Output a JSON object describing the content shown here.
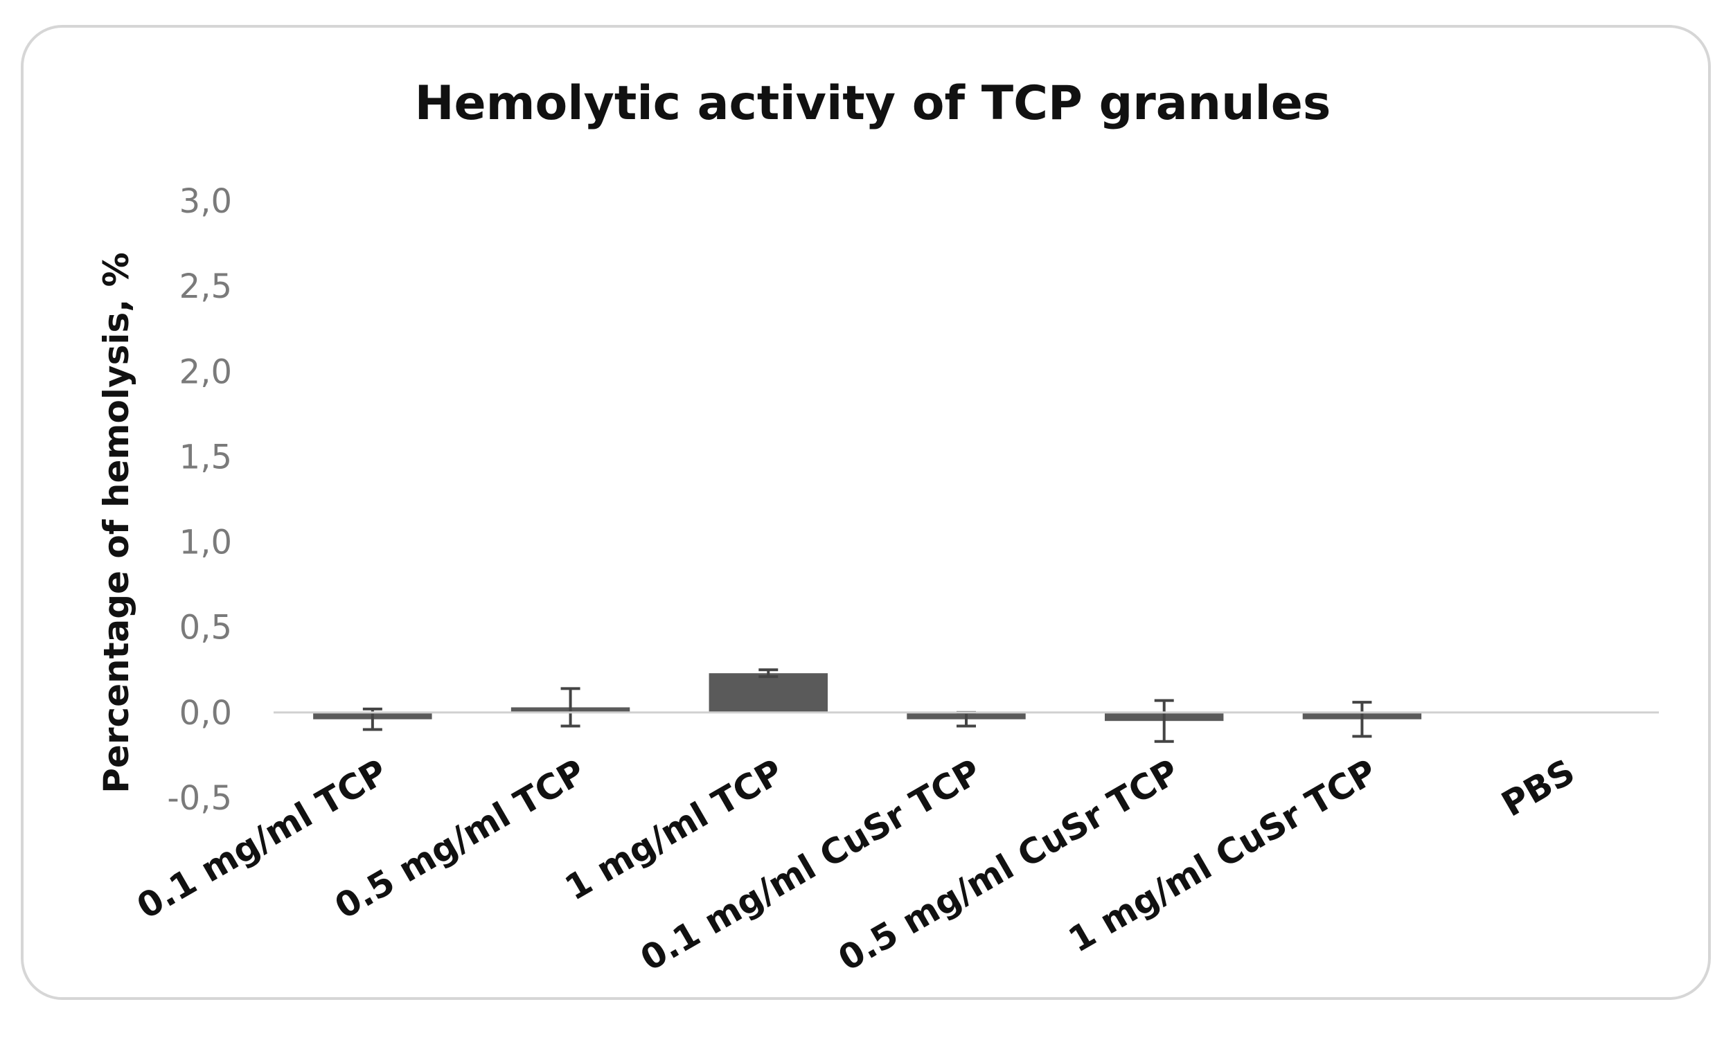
{
  "chart_data": {
    "type": "bar",
    "title": "Hemolytic activity of TCP granules",
    "xlabel": "",
    "ylabel": "Percentage of hemolysis, %",
    "ylim": [
      -0.5,
      3.0
    ],
    "yticks": [
      -0.5,
      0.0,
      0.5,
      1.0,
      1.5,
      2.0,
      2.5,
      3.0
    ],
    "ytick_labels": [
      "-0,5",
      "0,0",
      "0,5",
      "1,0",
      "1,5",
      "2,0",
      "2,5",
      "3,0"
    ],
    "categories": [
      "0.1 mg/ml TCP",
      "0.5 mg/ml TCP",
      "1 mg/ml TCP",
      "0.1 mg/ml CuSr TCP",
      "0.5 mg/ml CuSr TCP",
      "1 mg/ml CuSr TCP",
      "PBS"
    ],
    "values": [
      -0.04,
      0.03,
      0.23,
      -0.04,
      -0.05,
      -0.04,
      0.0
    ],
    "errors": [
      0.06,
      0.11,
      0.02,
      0.04,
      0.12,
      0.1,
      0.0
    ],
    "bar_color": "#5a5a5a",
    "error_bar_color": "#444444",
    "axis_color": "#d0d0d0",
    "grid": false,
    "legend": "none"
  }
}
